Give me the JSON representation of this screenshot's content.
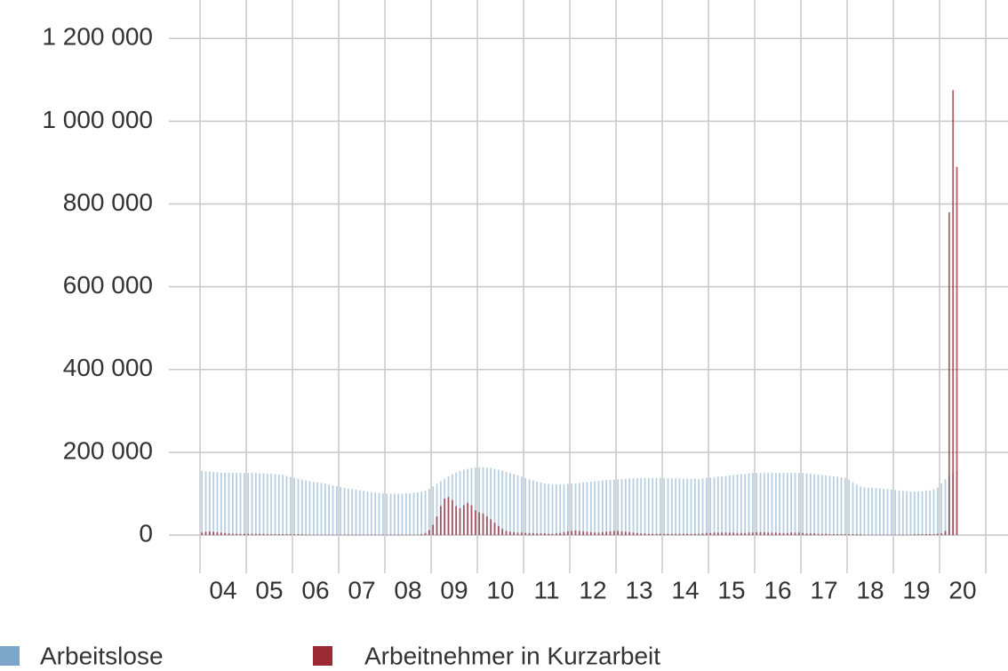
{
  "chart_data": {
    "type": "bar",
    "categories": [
      "04",
      null,
      null,
      null,
      null,
      null,
      null,
      null,
      null,
      null,
      null,
      null,
      "05",
      null,
      null,
      null,
      null,
      null,
      null,
      null,
      null,
      null,
      null,
      null,
      "06",
      null,
      null,
      null,
      null,
      null,
      null,
      null,
      null,
      null,
      null,
      null,
      "07",
      null,
      null,
      null,
      null,
      null,
      null,
      null,
      null,
      null,
      null,
      null,
      "08",
      null,
      null,
      null,
      null,
      null,
      null,
      null,
      null,
      null,
      null,
      null,
      "09",
      null,
      null,
      null,
      null,
      null,
      null,
      null,
      null,
      null,
      null,
      null,
      "10",
      null,
      null,
      null,
      null,
      null,
      null,
      null,
      null,
      null,
      null,
      null,
      "11",
      null,
      null,
      null,
      null,
      null,
      null,
      null,
      null,
      null,
      null,
      null,
      "12",
      null,
      null,
      null,
      null,
      null,
      null,
      null,
      null,
      null,
      null,
      null,
      "13",
      null,
      null,
      null,
      null,
      null,
      null,
      null,
      null,
      null,
      null,
      null,
      "14",
      null,
      null,
      null,
      null,
      null,
      null,
      null,
      null,
      null,
      null,
      null,
      "15",
      null,
      null,
      null,
      null,
      null,
      null,
      null,
      null,
      null,
      null,
      null,
      "16",
      null,
      null,
      null,
      null,
      null,
      null,
      null,
      null,
      null,
      null,
      null,
      "17",
      null,
      null,
      null,
      null,
      null,
      null,
      null,
      null,
      null,
      null,
      null,
      "18",
      null,
      null,
      null,
      null,
      null,
      null,
      null,
      null,
      null,
      null,
      null,
      "19",
      null,
      null,
      null,
      null,
      null,
      null,
      null,
      null,
      null,
      null,
      null,
      "20",
      null,
      null,
      null,
      null
    ],
    "series": [
      {
        "name": "Arbeitslose",
        "color": "#7ea6c8",
        "values": [
          155000,
          154000,
          153000,
          152000,
          152000,
          151000,
          151000,
          151000,
          151000,
          150000,
          150000,
          150000,
          150000,
          150000,
          150000,
          149000,
          149000,
          148000,
          148000,
          147000,
          146000,
          145000,
          143000,
          140000,
          138000,
          136000,
          134000,
          132000,
          130000,
          128000,
          127000,
          126000,
          124000,
          122000,
          120000,
          118000,
          116000,
          114000,
          112000,
          111000,
          110000,
          108000,
          107000,
          105000,
          104000,
          103000,
          102000,
          101000,
          100000,
          100000,
          100000,
          100000,
          100000,
          101000,
          101000,
          102000,
          103000,
          105000,
          108000,
          112000,
          118000,
          124000,
          130000,
          136000,
          142000,
          147000,
          151000,
          155000,
          158000,
          160000,
          162000,
          163000,
          164000,
          164000,
          163000,
          162000,
          160000,
          158000,
          156000,
          153000,
          150000,
          147000,
          144000,
          141000,
          138000,
          135000,
          132000,
          129000,
          127000,
          125000,
          124000,
          123000,
          123000,
          123000,
          123000,
          124000,
          124000,
          125000,
          126000,
          127000,
          128000,
          129000,
          130000,
          131000,
          132000,
          133000,
          133000,
          134000,
          135000,
          135000,
          136000,
          137000,
          137000,
          138000,
          138000,
          138000,
          138000,
          138000,
          138000,
          138000,
          137000,
          137000,
          137000,
          137000,
          137000,
          136000,
          136000,
          136000,
          136000,
          136000,
          137000,
          138000,
          139000,
          140000,
          141000,
          142000,
          143000,
          144000,
          145000,
          146000,
          147000,
          148000,
          149000,
          150000,
          150000,
          150000,
          150000,
          150000,
          150000,
          150000,
          150000,
          150000,
          150000,
          150000,
          150000,
          150000,
          150000,
          149000,
          148000,
          147000,
          146000,
          145000,
          144000,
          143000,
          142000,
          141000,
          140000,
          138000,
          134000,
          128000,
          122000,
          117000,
          115000,
          114000,
          114000,
          113000,
          113000,
          112000,
          111000,
          110000,
          109000,
          108000,
          107000,
          106000,
          105000,
          105000,
          105000,
          106000,
          107000,
          108000,
          110000,
          115000,
          125000,
          135000,
          143000,
          150000,
          155000
        ]
      },
      {
        "name": "Arbeitnehmer in Kurzarbeit",
        "color": "#9b2a35",
        "values": [
          6000,
          8000,
          9000,
          8000,
          7000,
          6000,
          5000,
          4000,
          3000,
          3000,
          3000,
          3000,
          3000,
          3000,
          3000,
          3000,
          3000,
          2000,
          2000,
          2000,
          2000,
          2000,
          2000,
          2000,
          2000,
          2000,
          2000,
          1000,
          1000,
          1000,
          1000,
          1000,
          1000,
          1000,
          1000,
          1000,
          1000,
          1000,
          1000,
          1000,
          1000,
          1000,
          1000,
          1000,
          1000,
          1000,
          1000,
          1000,
          1000,
          1000,
          1000,
          1000,
          1000,
          1000,
          1000,
          1000,
          1000,
          2000,
          5000,
          12000,
          25000,
          45000,
          70000,
          88000,
          92000,
          85000,
          70000,
          65000,
          72000,
          78000,
          72000,
          60000,
          55000,
          52000,
          45000,
          38000,
          30000,
          22000,
          15000,
          10000,
          8000,
          7000,
          6000,
          6000,
          5000,
          5000,
          5000,
          4000,
          4000,
          4000,
          3000,
          3000,
          4000,
          5000,
          7000,
          9000,
          10000,
          11000,
          10000,
          9000,
          8000,
          7000,
          6000,
          6000,
          7000,
          8000,
          9000,
          10000,
          10000,
          9000,
          8000,
          7000,
          6000,
          5000,
          4000,
          4000,
          3000,
          3000,
          3000,
          3000,
          3000,
          3000,
          3000,
          3000,
          3000,
          3000,
          3000,
          3000,
          3000,
          3000,
          4000,
          5000,
          5000,
          6000,
          6000,
          6000,
          6000,
          6000,
          6000,
          5000,
          5000,
          5000,
          6000,
          6000,
          7000,
          7000,
          7000,
          6000,
          6000,
          6000,
          5000,
          5000,
          5000,
          6000,
          6000,
          6000,
          5000,
          4000,
          4000,
          4000,
          3000,
          3000,
          3000,
          2000,
          2000,
          2000,
          2000,
          2000,
          2000,
          2000,
          2000,
          2000,
          1000,
          1000,
          1000,
          1000,
          1000,
          1000,
          1000,
          1000,
          1000,
          1000,
          1000,
          1000,
          1000,
          2000,
          2000,
          2000,
          2000,
          2000,
          2000,
          3000,
          4000,
          10000,
          780000,
          1075000,
          890000
        ]
      }
    ],
    "ylim": [
      -75000,
      1250000
    ],
    "yticks": [
      0,
      {
        "value": 200000,
        "label": "200 000"
      },
      {
        "value": 400000,
        "label": "400 000"
      },
      {
        "value": 600000,
        "label": "600 000"
      },
      {
        "value": 800000,
        "label": "800 000"
      },
      {
        "value": 1000000,
        "label": "1 000 000"
      },
      {
        "value": 1200000,
        "label": "1 200 000"
      }
    ],
    "grid": true
  }
}
